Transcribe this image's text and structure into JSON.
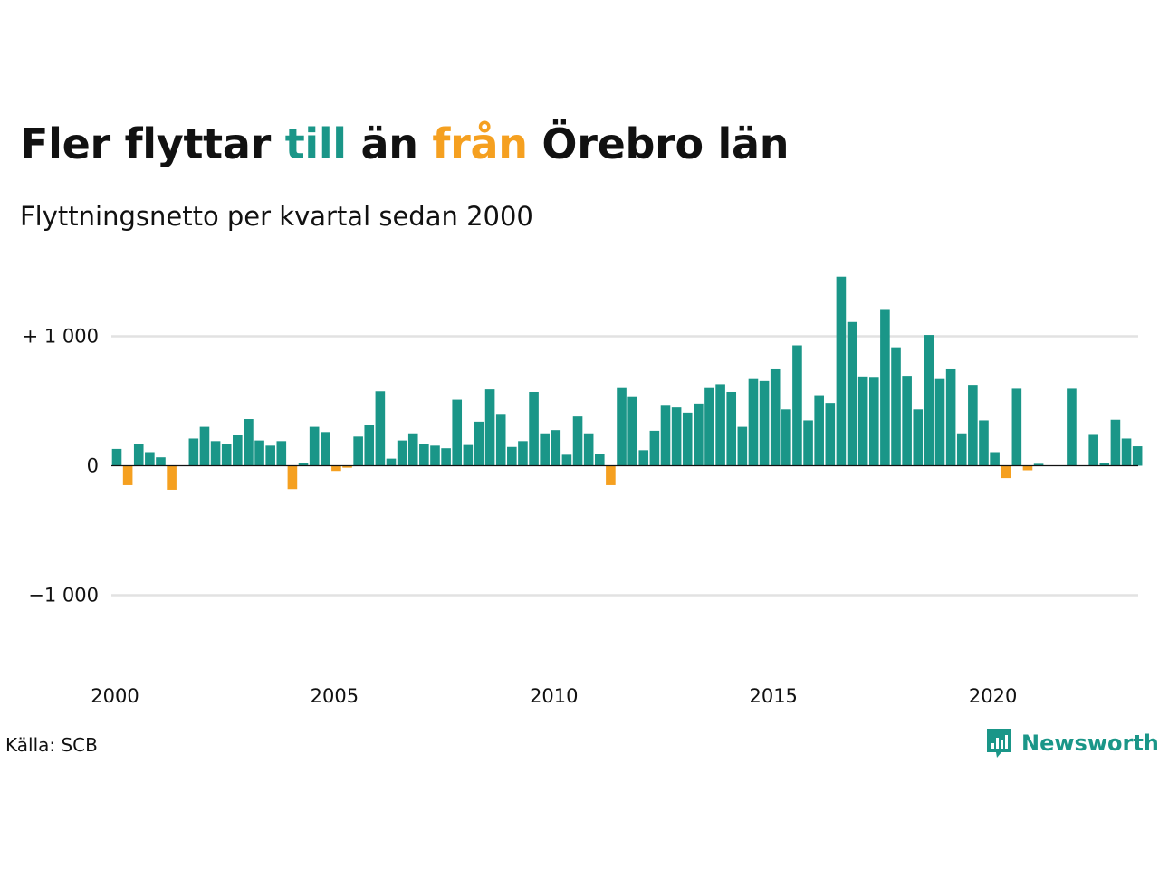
{
  "title": {
    "part1": "Fler flyttar ",
    "part2": "till",
    "part3": " än ",
    "part4": "från",
    "part5": " Örebro län"
  },
  "subtitle": "Flyttningsnetto per kvartal sedan 2000",
  "source": "Källa: SCB",
  "logo": {
    "text": "Newsworthy",
    "icon": "newsworthy-logo-icon"
  },
  "colors": {
    "positive": "#1a9688",
    "negative": "#f5a020",
    "text": "#111111",
    "grid": "#e2e2e2",
    "zero_line": "#111111"
  },
  "chart_data": {
    "type": "bar",
    "start_year": 2000,
    "frequency": "quarterly",
    "x_tick_labels": [
      "2000",
      "2005",
      "2010",
      "2015",
      "2020"
    ],
    "y_ticks": [
      {
        "value": 1000,
        "label": "+ 1 000"
      },
      {
        "value": 0,
        "label": "0"
      },
      {
        "value": -1000,
        "label": "−1 000"
      }
    ],
    "ylim": [
      -1600,
      1450
    ],
    "grid": true,
    "values": [
      130,
      -150,
      170,
      105,
      65,
      -185,
      0,
      210,
      300,
      190,
      165,
      235,
      360,
      195,
      155,
      190,
      -180,
      20,
      300,
      260,
      -40,
      -15,
      225,
      315,
      575,
      55,
      195,
      250,
      165,
      155,
      135,
      510,
      160,
      340,
      590,
      400,
      145,
      190,
      570,
      250,
      275,
      85,
      380,
      250,
      90,
      -150,
      600,
      530,
      120,
      270,
      470,
      450,
      410,
      480,
      600,
      630,
      570,
      300,
      670,
      655,
      745,
      435,
      930,
      350,
      545,
      485,
      1460,
      1110,
      690,
      680,
      1210,
      915,
      695,
      435,
      1010,
      670,
      745,
      250,
      625,
      350,
      105,
      -95,
      595,
      -35,
      15,
      0,
      0,
      595,
      0,
      245,
      20,
      355,
      210,
      150
    ]
  }
}
